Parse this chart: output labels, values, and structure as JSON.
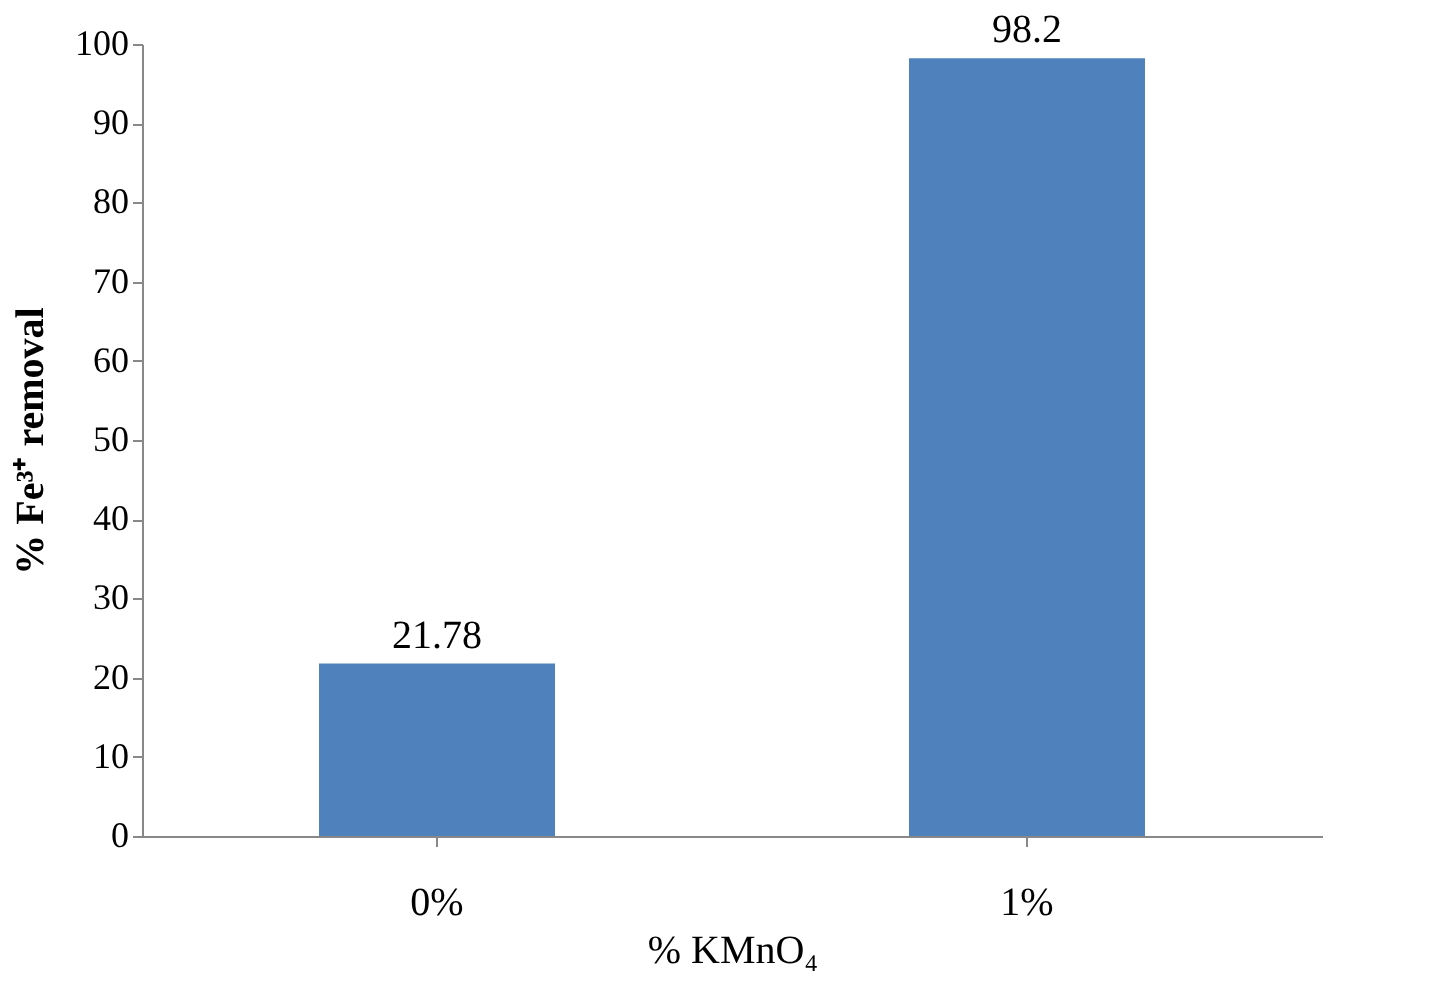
{
  "chart_data": {
    "type": "bar",
    "ylabel": "% Fe³⁺ removal",
    "xlabel": "% KMnO₄",
    "categories": [
      "0%",
      "1%"
    ],
    "values": [
      21.78,
      98.2
    ],
    "color": "#4f81bd",
    "ylim": [
      0,
      100
    ],
    "yticks": [
      0,
      10,
      20,
      30,
      40,
      50,
      60,
      70,
      80,
      90,
      100
    ],
    "data_labels": true,
    "grid": false
  }
}
